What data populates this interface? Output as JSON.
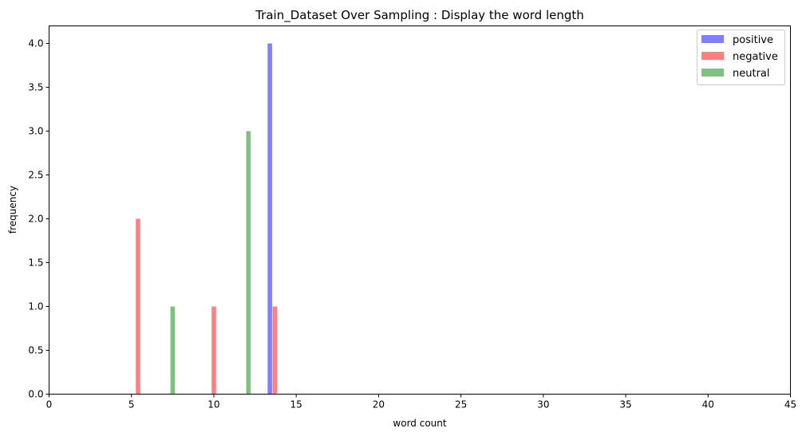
{
  "chart_data": {
    "type": "bar",
    "title": "Train_Dataset Over Sampling : Display the word length",
    "xlabel": "word count",
    "ylabel": "frequency",
    "xlim": [
      0,
      45
    ],
    "ylim": [
      0,
      4.2
    ],
    "xticks": [
      "0",
      "5",
      "10",
      "15",
      "20",
      "25",
      "30",
      "35",
      "40",
      "45"
    ],
    "yticks": [
      "0.0",
      "0.5",
      "1.0",
      "1.5",
      "2.0",
      "2.5",
      "3.0",
      "3.5",
      "4.0"
    ],
    "grid": false,
    "legend_position": "top-right",
    "bar_width": 0.27,
    "series": [
      {
        "name": "positive",
        "color": "#8080ff",
        "bars": [
          {
            "x": 13.4,
            "y": 4
          }
        ]
      },
      {
        "name": "negative",
        "color": "#ff8080",
        "bars": [
          {
            "x": 5.4,
            "y": 2
          },
          {
            "x": 10.0,
            "y": 1
          },
          {
            "x": 13.7,
            "y": 1
          }
        ]
      },
      {
        "name": "neutral",
        "color": "#80c080",
        "bars": [
          {
            "x": 7.5,
            "y": 1
          },
          {
            "x": 12.1,
            "y": 3
          }
        ]
      }
    ]
  }
}
